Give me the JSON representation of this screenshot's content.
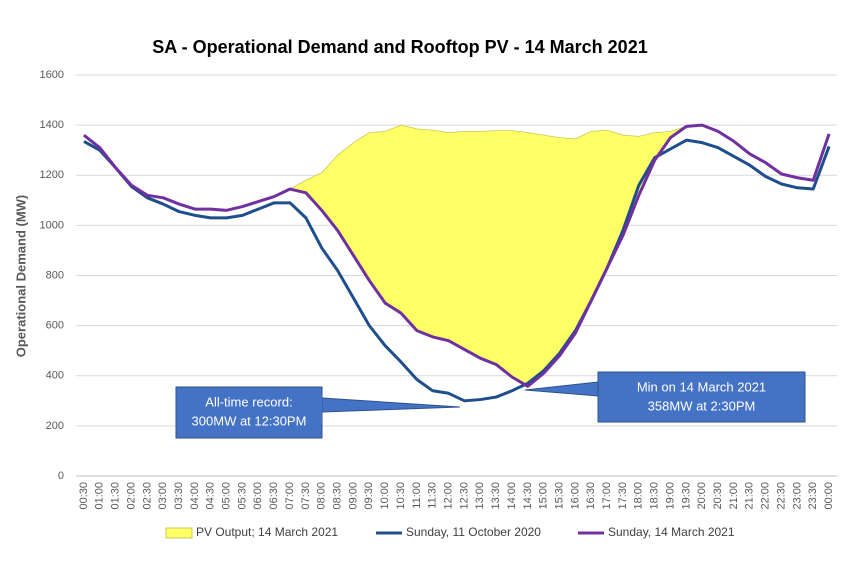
{
  "chart_data": {
    "type": "line",
    "title": "SA - Operational Demand and Rooftop PV - 14 March 2021",
    "y_label": "Operational Demand (MW)",
    "categories": [
      "00:30",
      "01:00",
      "01:30",
      "02:00",
      "02:30",
      "03:00",
      "03:30",
      "04:00",
      "04:30",
      "05:00",
      "05:30",
      "06:00",
      "06:30",
      "07:00",
      "07:30",
      "08:00",
      "08:30",
      "09:00",
      "09:30",
      "10:00",
      "10:30",
      "11:00",
      "11:30",
      "12:00",
      "12:30",
      "13:00",
      "13:30",
      "14:00",
      "14:30",
      "15:00",
      "15:30",
      "16:00",
      "16:30",
      "17:00",
      "17:30",
      "18:00",
      "18:30",
      "19:00",
      "19:30",
      "20:00",
      "20:30",
      "21:00",
      "21:30",
      "22:00",
      "22:30",
      "23:00",
      "23:30",
      "00:00"
    ],
    "series": [
      {
        "name": "PV Output; 14 March 2021",
        "type": "area",
        "color": "#ffff66",
        "values": [
          0,
          0,
          0,
          0,
          0,
          0,
          0,
          0,
          0,
          0,
          0,
          0,
          0,
          0,
          50,
          150,
          300,
          450,
          590,
          685,
          750,
          805,
          825,
          830,
          870,
          905,
          933,
          983,
          1012,
          950,
          870,
          775,
          675,
          550,
          400,
          235,
          110,
          25,
          0,
          0,
          0,
          0,
          0,
          0,
          0,
          0,
          0,
          0
        ]
      },
      {
        "name": "Sunday, 11 October 2020",
        "type": "line",
        "color": "#1f4e8c",
        "values": [
          1335,
          1300,
          1230,
          1155,
          1110,
          1085,
          1055,
          1040,
          1030,
          1030,
          1040,
          1065,
          1090,
          1090,
          1030,
          910,
          820,
          710,
          600,
          520,
          455,
          385,
          340,
          330,
          300,
          305,
          315,
          340,
          370,
          420,
          490,
          580,
          700,
          830,
          980,
          1160,
          1270,
          1305,
          1340,
          1330,
          1310,
          1275,
          1240,
          1195,
          1165,
          1150,
          1145,
          1315
        ]
      },
      {
        "name": "Sunday, 14 March 2021",
        "type": "line",
        "color": "#7030a0",
        "values": [
          1360,
          1310,
          1230,
          1160,
          1120,
          1110,
          1085,
          1065,
          1065,
          1060,
          1075,
          1095,
          1115,
          1145,
          1130,
          1060,
          980,
          880,
          780,
          690,
          650,
          580,
          555,
          540,
          505,
          470,
          445,
          395,
          358,
          410,
          480,
          570,
          700,
          830,
          960,
          1120,
          1260,
          1350,
          1395,
          1400,
          1375,
          1335,
          1285,
          1250,
          1205,
          1190,
          1180,
          1365
        ]
      }
    ],
    "ylim": [
      0,
      1600
    ],
    "yticks": [
      0,
      200,
      400,
      600,
      800,
      1000,
      1200,
      1400,
      1600
    ],
    "grid": true,
    "legend": "bottom",
    "annotations": [
      {
        "lines": [
          "All-time record:",
          "300MW at 12:30PM"
        ]
      },
      {
        "lines": [
          "Min on 14 March 2021",
          "358MW at 2:30PM"
        ]
      }
    ]
  }
}
